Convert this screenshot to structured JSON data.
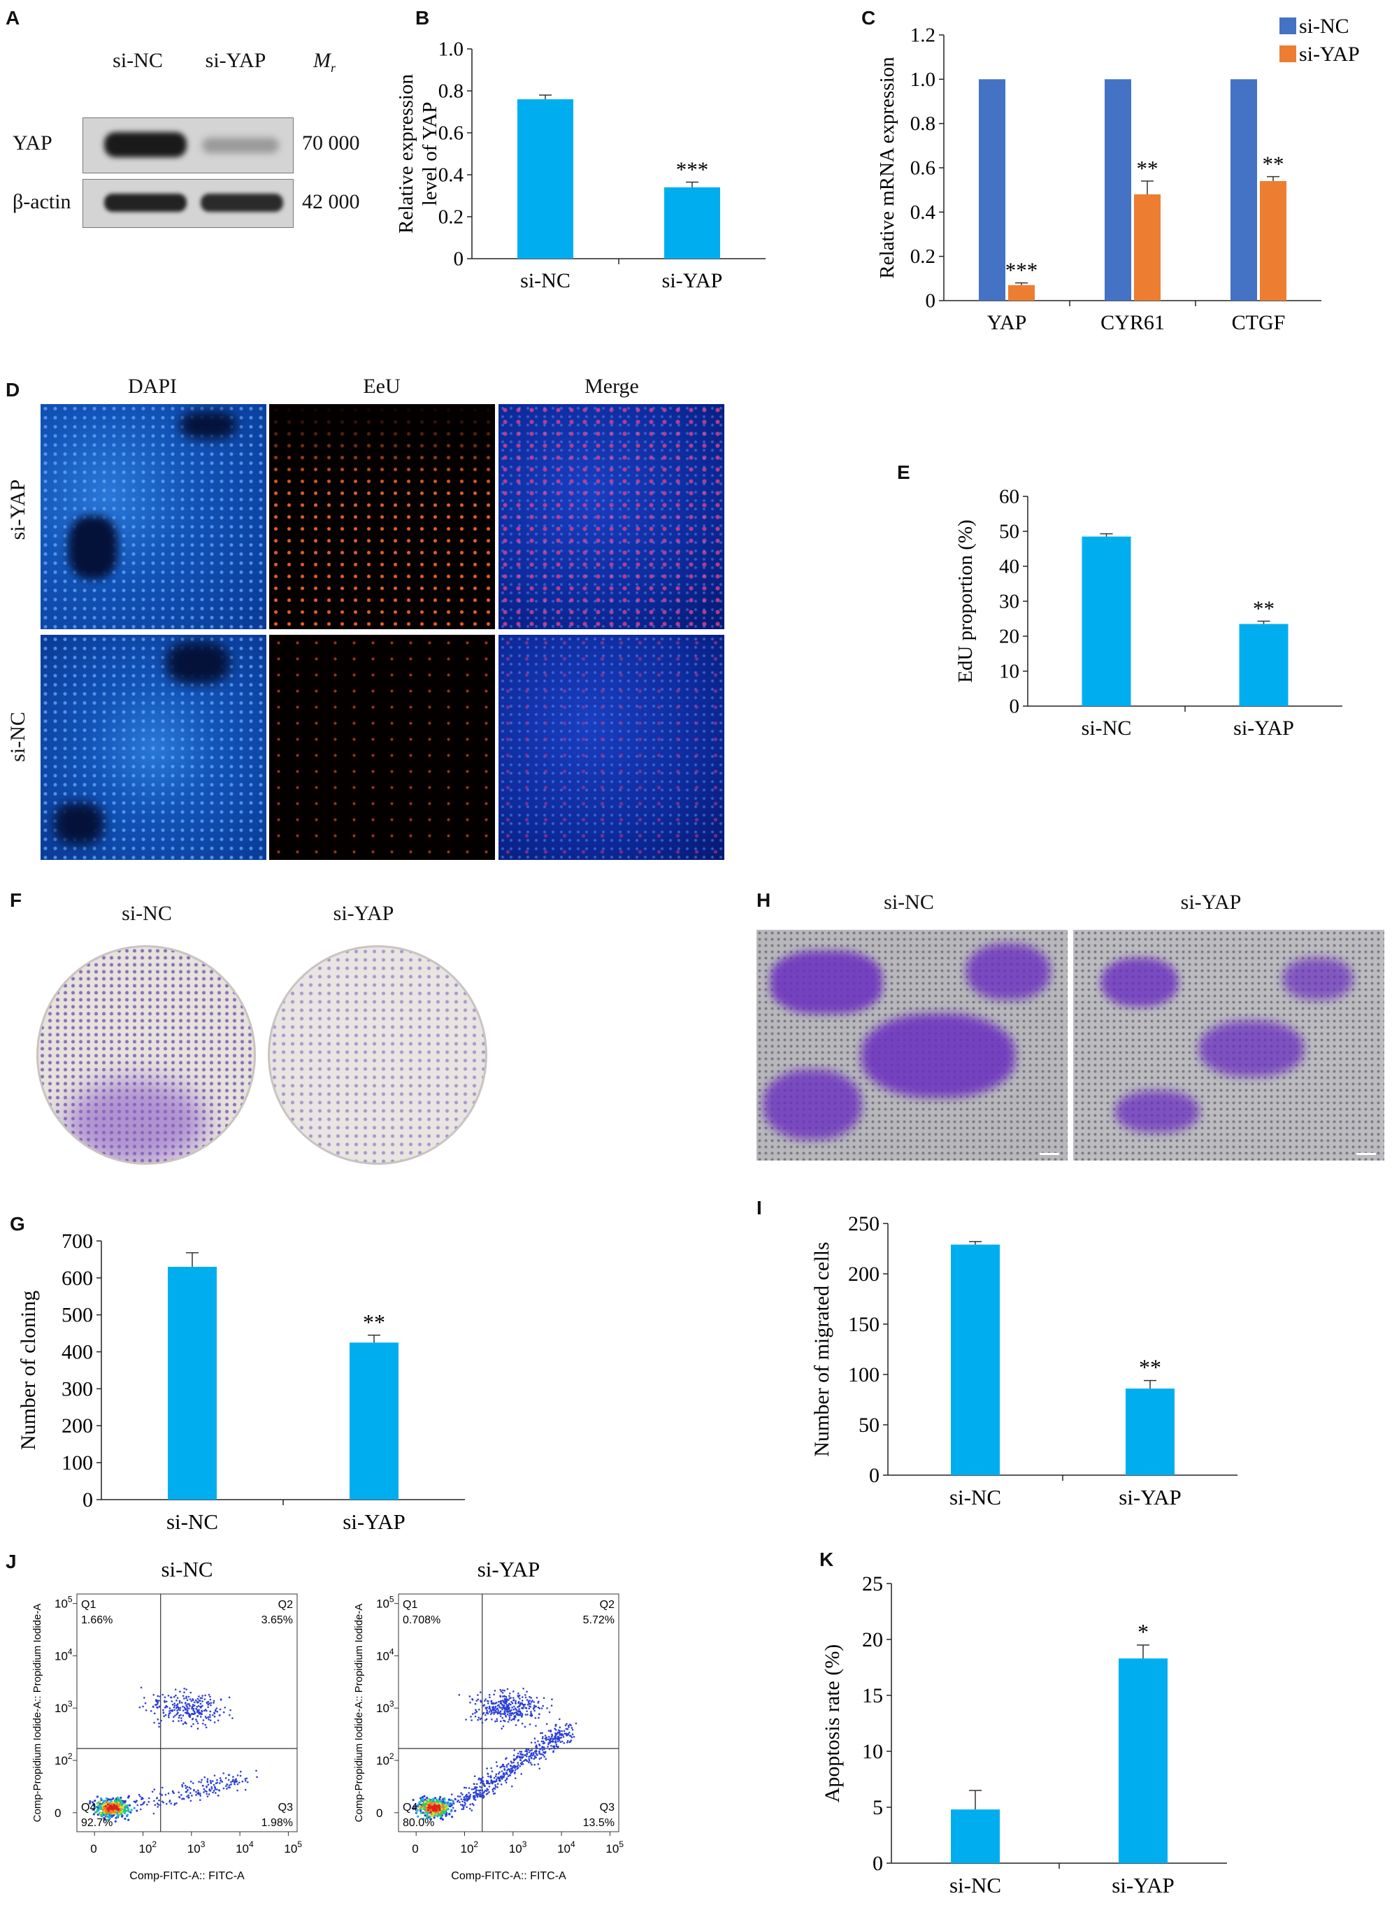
{
  "panels": {
    "A": {
      "letter": "A",
      "lanes": [
        "si-NC",
        "si-YAP"
      ],
      "mr_label": "M",
      "mr_sub": "r",
      "bands": [
        {
          "protein": "YAP",
          "mr": "70 000"
        },
        {
          "protein": "β-actin",
          "mr": "42 000"
        }
      ]
    },
    "B": {
      "letter": "B"
    },
    "C": {
      "letter": "C"
    },
    "D": {
      "letter": "D",
      "columns": [
        "DAPI",
        "EeU",
        "Merge"
      ],
      "rows": [
        "si-YAP",
        "si-NC"
      ]
    },
    "E": {
      "letter": "E"
    },
    "F": {
      "letter": "F",
      "labels": [
        "si-NC",
        "si-YAP"
      ]
    },
    "G": {
      "letter": "G"
    },
    "H": {
      "letter": "H",
      "labels": [
        "si-NC",
        "si-YAP"
      ]
    },
    "I": {
      "letter": "I"
    },
    "J": {
      "letter": "J",
      "plots": [
        {
          "title": "si-NC",
          "q1": "Q1",
          "q1v": "1.66%",
          "q2": "Q2",
          "q2v": "3.65%",
          "q3": "Q3",
          "q3v": "1.98%",
          "q4": "Q4",
          "q4v": "92.7%"
        },
        {
          "title": "si-YAP",
          "q1": "Q1",
          "q1v": "0.708%",
          "q2": "Q2",
          "q2v": "5.72%",
          "q3": "Q3",
          "q3v": "13.5%",
          "q4": "Q4",
          "q4v": "80.0%"
        }
      ],
      "xlabel": "Comp-FITC-A:: FITC-A",
      "ylabel": "Comp-Propidium Iodide-A:: Propidium Iodide-A",
      "ticks": [
        "0",
        "10",
        "10",
        "10",
        "10"
      ],
      "tick_exps": [
        "",
        "2",
        "3",
        "4",
        "5"
      ]
    },
    "K": {
      "letter": "K"
    }
  },
  "chart_data": [
    {
      "id": "B",
      "type": "bar",
      "categories": [
        "si-NC",
        "si-YAP"
      ],
      "values": [
        0.76,
        0.34
      ],
      "errors": [
        0.02,
        0.025
      ],
      "significance": [
        "",
        "***"
      ],
      "ylabel": "Relative expression level of YAP",
      "ylim": [
        0,
        1.0
      ],
      "yticks": [
        "0",
        "0.2",
        "0.4",
        "0.6",
        "0.8",
        "1.0"
      ],
      "color": "#00aeef"
    },
    {
      "id": "C",
      "type": "bar",
      "categories": [
        "YAP",
        "CYR61",
        "CTGF"
      ],
      "series": [
        {
          "name": "si-NC",
          "values": [
            1.0,
            1.0,
            1.0
          ],
          "errors": [
            0,
            0,
            0
          ],
          "color": "#4472c4"
        },
        {
          "name": "si-YAP",
          "values": [
            0.07,
            0.48,
            0.54
          ],
          "errors": [
            0.01,
            0.06,
            0.02
          ],
          "color": "#ed7d31",
          "significance": [
            "***",
            "**",
            "**"
          ]
        }
      ],
      "ylabel": "Relative mRNA expression",
      "ylim": [
        0,
        1.2
      ],
      "yticks": [
        "0",
        "0.2",
        "0.4",
        "0.6",
        "0.8",
        "1.0",
        "1.2"
      ],
      "legend": "top-right"
    },
    {
      "id": "E",
      "type": "bar",
      "categories": [
        "si-NC",
        "si-YAP"
      ],
      "values": [
        48.5,
        23.5
      ],
      "errors": [
        0.8,
        0.8
      ],
      "significance": [
        "",
        "**"
      ],
      "ylabel": "EdU proportion (%)",
      "ylim": [
        0,
        60
      ],
      "yticks": [
        "0",
        "10",
        "20",
        "30",
        "40",
        "50",
        "60"
      ],
      "color": "#00aeef"
    },
    {
      "id": "G",
      "type": "bar",
      "categories": [
        "si-NC",
        "si-YAP"
      ],
      "values": [
        630,
        425
      ],
      "errors": [
        38,
        20
      ],
      "significance": [
        "",
        "**"
      ],
      "ylabel": "Number of cloning",
      "ylim": [
        0,
        700
      ],
      "yticks": [
        "0",
        "100",
        "200",
        "300",
        "400",
        "500",
        "600",
        "700"
      ],
      "color": "#00aeef"
    },
    {
      "id": "I",
      "type": "bar",
      "categories": [
        "si-NC",
        "si-YAP"
      ],
      "values": [
        229,
        86
      ],
      "errors": [
        3,
        8
      ],
      "significance": [
        "",
        "**"
      ],
      "ylabel": "Number of migrated cells",
      "ylim": [
        0,
        250
      ],
      "yticks": [
        "0",
        "50",
        "100",
        "150",
        "200",
        "250"
      ],
      "color": "#00aeef"
    },
    {
      "id": "K",
      "type": "bar",
      "categories": [
        "si-NC",
        "si-YAP"
      ],
      "values": [
        4.8,
        18.3
      ],
      "errors": [
        1.7,
        1.2
      ],
      "significance": [
        "",
        "*"
      ],
      "ylabel": "Apoptosis rate (%)",
      "ylim": [
        0,
        25
      ],
      "yticks": [
        "0",
        "5",
        "10",
        "15",
        "20",
        "25"
      ],
      "color": "#00aeef"
    }
  ]
}
